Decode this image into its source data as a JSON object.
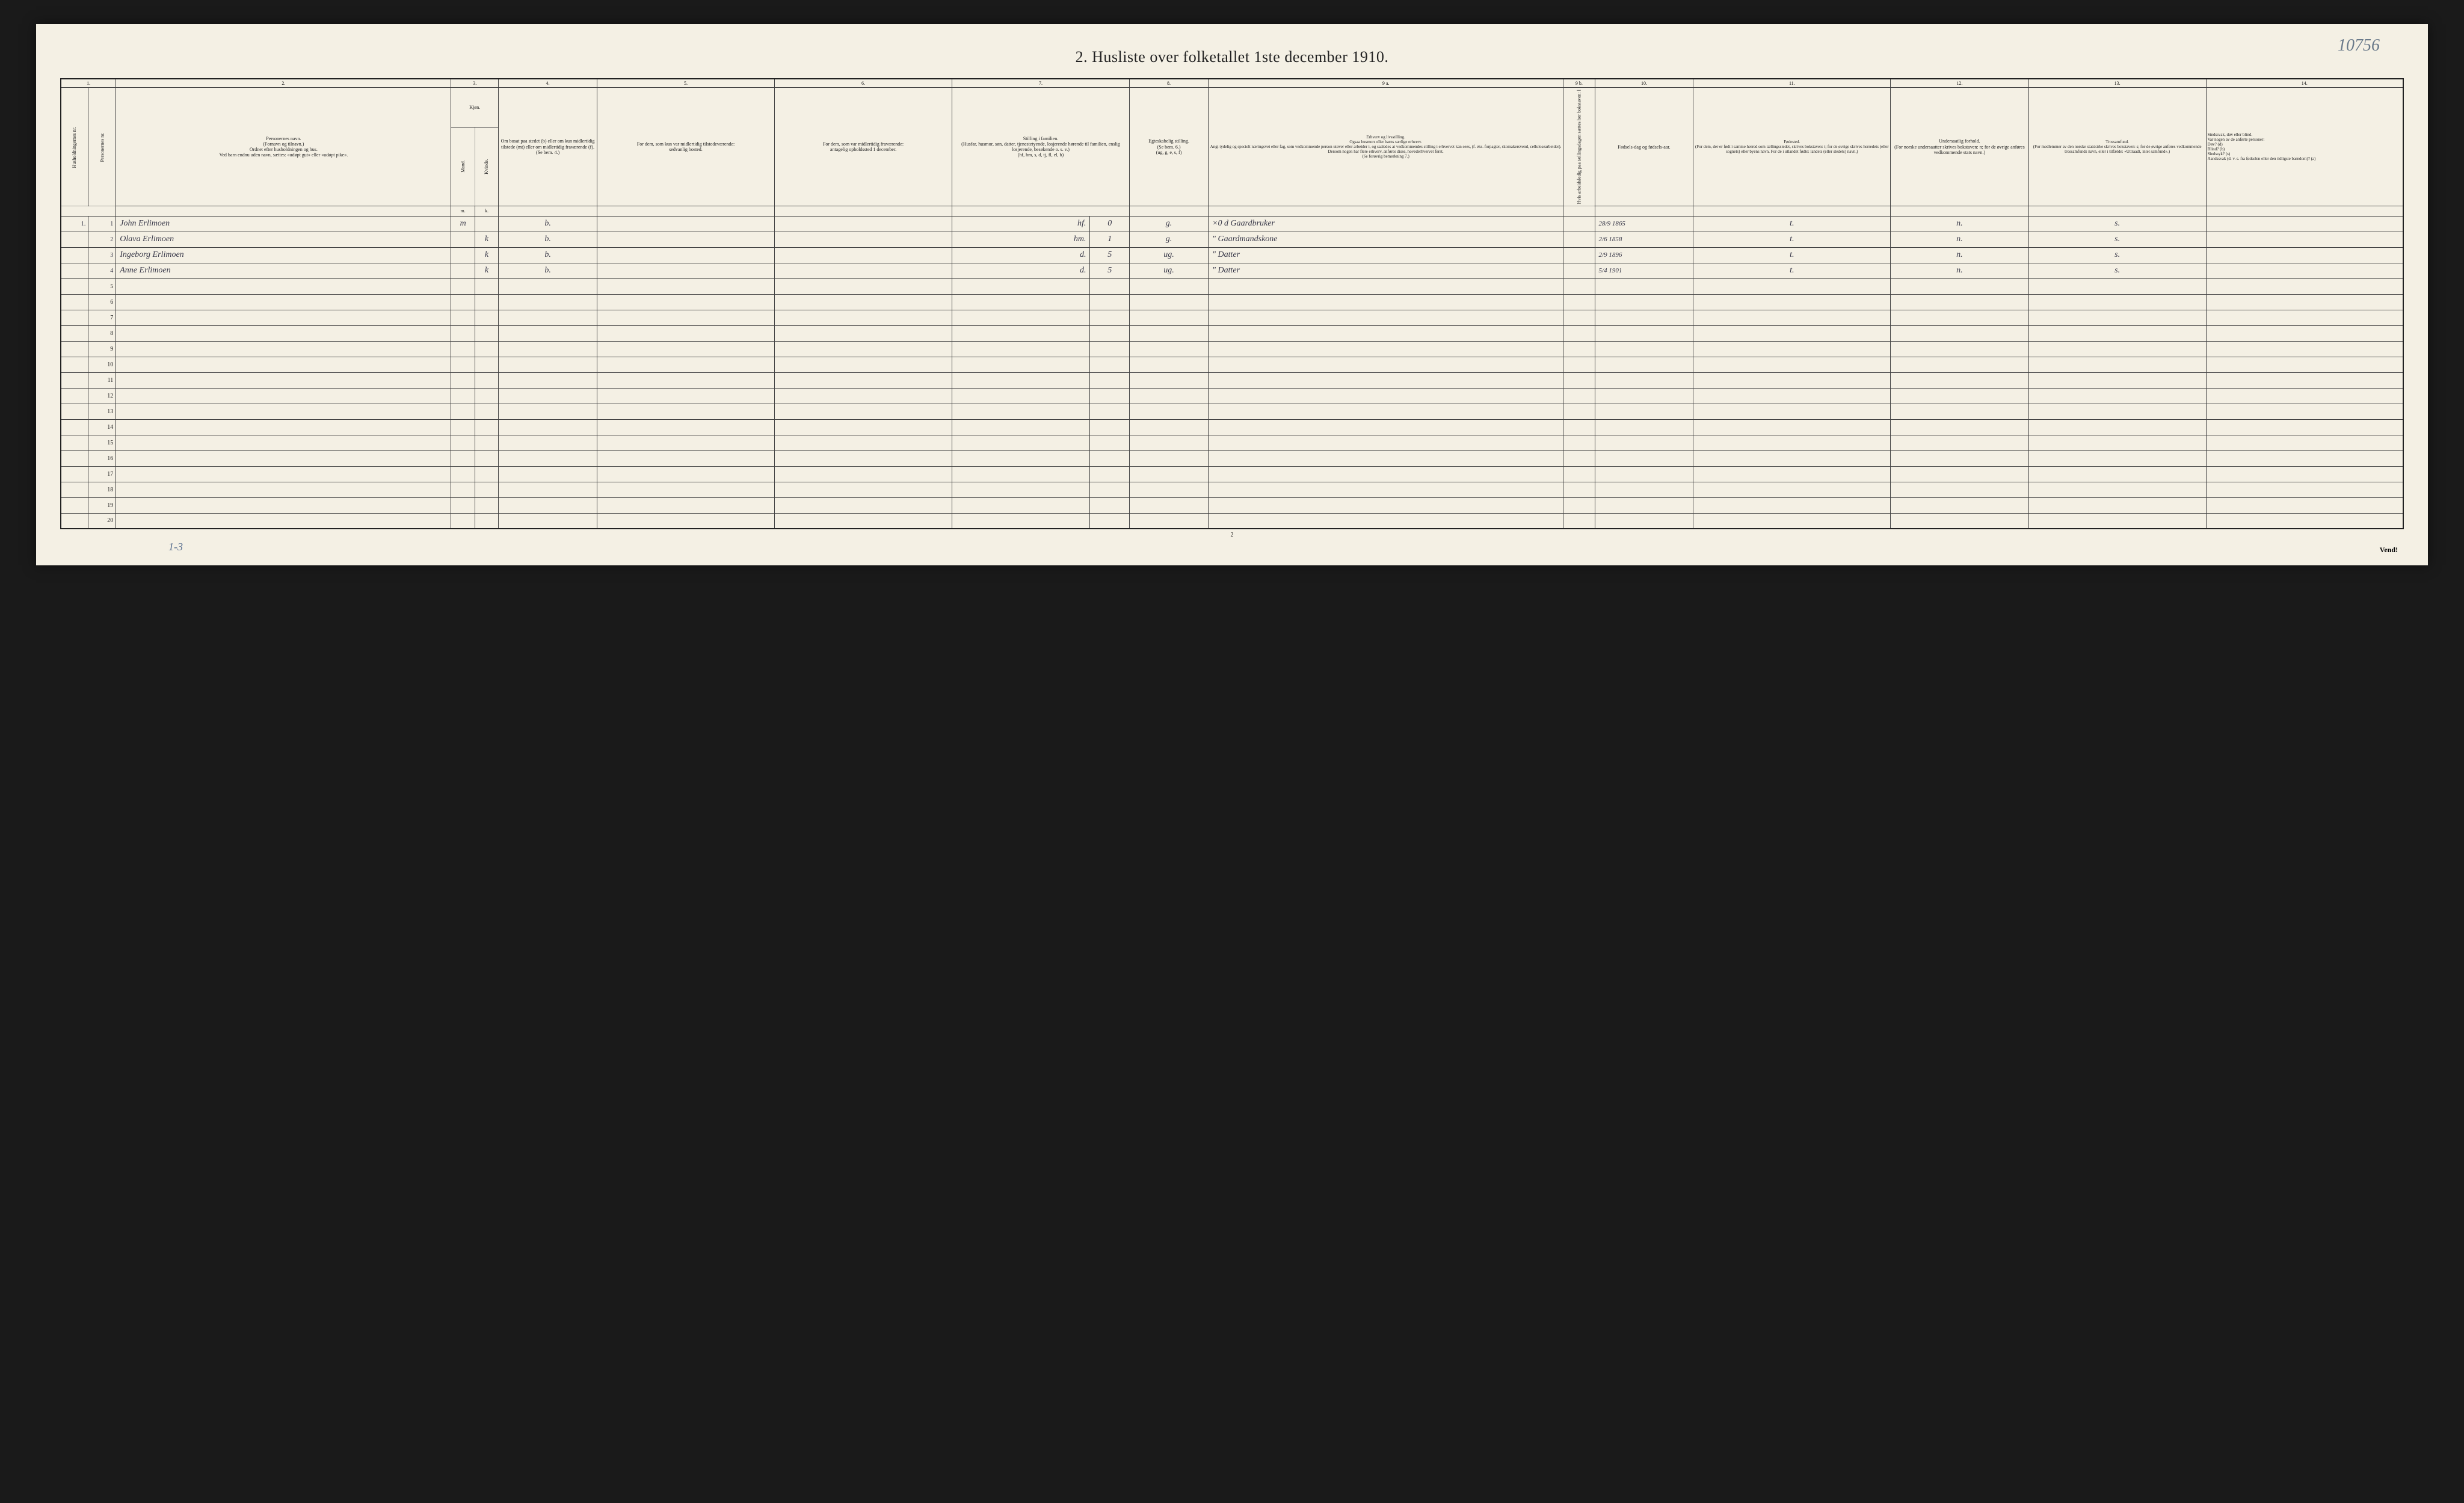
{
  "doc": {
    "title": "2.  Husliste over folketallet 1ste december 1910.",
    "handwritten_top_right": "10756",
    "footer_annotation": "1-3",
    "page_number": "2",
    "vend": "Vend!",
    "paper_color": "#f4f0e4",
    "border_color": "#444444",
    "handwriting_color": "#3a3a4a",
    "pencil_color": "#6a7a8a"
  },
  "columns": {
    "group_numbers": [
      "1.",
      "2.",
      "3.",
      "4.",
      "5.",
      "6.",
      "7.",
      "8.",
      "9 a.",
      "9 b.",
      "10.",
      "11.",
      "12.",
      "13.",
      "14."
    ],
    "h1": "Husholdningernes nr.",
    "h1b": "Personernes nr.",
    "h2": "Personernes navn.\n(Fornavn og tilnavn.)\nOrdnet efter husholdningen og hus.\nVed barn endnu uden navn, sættes: «udøpt gut» eller «udøpt pike».",
    "h3": "Kjøn.",
    "h3a": "Mand.",
    "h3b": "Kvinde.",
    "h4": "Om bosat paa stedet (b) eller om kun midlertidig tilstede (mt) eller om midlertidig fraværende (f).\n(Se bem. 4.)",
    "h5": "For dem, som kun var midlertidig tilstedeværende:\nsedvanlig bosted.",
    "h6": "For dem, som var midlertidig fraværende:\nantagelig opholdssted 1 december.",
    "h7": "Stilling i familien.\n(Husfar, husmor, søn, datter, tjenestetyende, losjerende hørende til familien, enslig losjerende, besøkende o. s. v.)\n(hf, hm, s, d, tj, fl, el, b)",
    "h8": "Egteskabelig stilling.\n(Se bem. 6.)\n(ug, g, e, s, f)",
    "h9a": "Erhverv og livsstilling.\nOgsaa husmors eller barns særlige erhverv.\nAngi tydelig og specielt næringsvei eller fag, som vedkommende person utøver eller arbeider i, og saaledes at vedkommendes stilling i erhvervet kan sees, (f. eks. forpagter, skomakersvend, cellulosearbeider). Dersom nogen har flere erhverv, anføres disse, hovederhvervet først.\n(Se forøvrig bemerkning 7.)",
    "h9b": "Hvis arbeidsledig paa tællingsdagen sættes her bokstaven: l",
    "h10": "Fødsels-dag og fødsels-aar.",
    "h11": "Fødested.\n(For dem, der er født i samme herred som tællingsstedet, skrives bokstaven: t; for de øvrige skrives herredets (eller sognets) eller byens navn. For de i utlandet fødte: landets (eller stedets) navn.)",
    "h12": "Undersaatlig forhold.\n(For norske undersaatter skrives bokstaven: n; for de øvrige anføres vedkommende stats navn.)",
    "h13": "Trossamfund.\n(For medlemmer av den norske statskirke skrives bokstaven: s; for de øvrige anføres vedkommende trossamfunds navn, eller i tilfælde: «Uttraadt, intet samfund».)",
    "h14": "Sindssvak, døv eller blind.\nVar nogen av de anførte personer:\nDøv?      (d)\nBlind?     (b)\nSindssyk? (s)\nAandssvak (d. v. s. fra fødselen eller den tidligste barndom)? (a)",
    "sub_mk": [
      "m.",
      "k."
    ]
  },
  "rows": [
    {
      "hh": "1.",
      "pn": "1",
      "name": "John Erlimoen",
      "m": "m",
      "k": "",
      "bosat": "b.",
      "c5": "",
      "c6": "",
      "c7": "hf.",
      "c7b": "0",
      "c8": "g.",
      "c9a": "×0 d  Gaardbruker",
      "c9b": "",
      "c10": "28/9 1865",
      "c11": "t.",
      "c12": "n.",
      "c13": "s.",
      "c14": ""
    },
    {
      "hh": "",
      "pn": "2",
      "name": "Olava Erlimoen",
      "m": "",
      "k": "k",
      "bosat": "b.",
      "c5": "",
      "c6": "",
      "c7": "hm.",
      "c7b": "1",
      "c8": "g.",
      "c9a": "\" Gaardmandskone",
      "c9b": "",
      "c10": "2/6 1858",
      "c11": "t.",
      "c12": "n.",
      "c13": "s.",
      "c14": ""
    },
    {
      "hh": "",
      "pn": "3",
      "name": "Ingeborg Erlimoen",
      "m": "",
      "k": "k",
      "bosat": "b.",
      "c5": "",
      "c6": "",
      "c7": "d.",
      "c7b": "5",
      "c8": "ug.",
      "c9a": "\" Datter",
      "c9b": "",
      "c10": "2/9 1896",
      "c11": "t.",
      "c12": "n.",
      "c13": "s.",
      "c14": ""
    },
    {
      "hh": "",
      "pn": "4",
      "name": "Anne Erlimoen",
      "m": "",
      "k": "k",
      "bosat": "b.",
      "c5": "",
      "c6": "",
      "c7": "d.",
      "c7b": "5",
      "c8": "ug.",
      "c9a": "\" Datter",
      "c9b": "",
      "c10": "5/4 1901",
      "c11": "t.",
      "c12": "n.",
      "c13": "s.",
      "c14": ""
    }
  ],
  "empty_rows": [
    5,
    6,
    7,
    8,
    9,
    10,
    11,
    12,
    13,
    14,
    15,
    16,
    17,
    18,
    19,
    20
  ],
  "widths": {
    "c0a": 14,
    "c0b": 14,
    "c2": 170,
    "c3a": 12,
    "c3b": 12,
    "c4": 50,
    "c5": 90,
    "c6": 90,
    "c7": 90,
    "c8": 40,
    "c9a": 180,
    "c9b": 16,
    "c10": 50,
    "c11": 100,
    "c12": 70,
    "c13": 90,
    "c14": 100
  }
}
